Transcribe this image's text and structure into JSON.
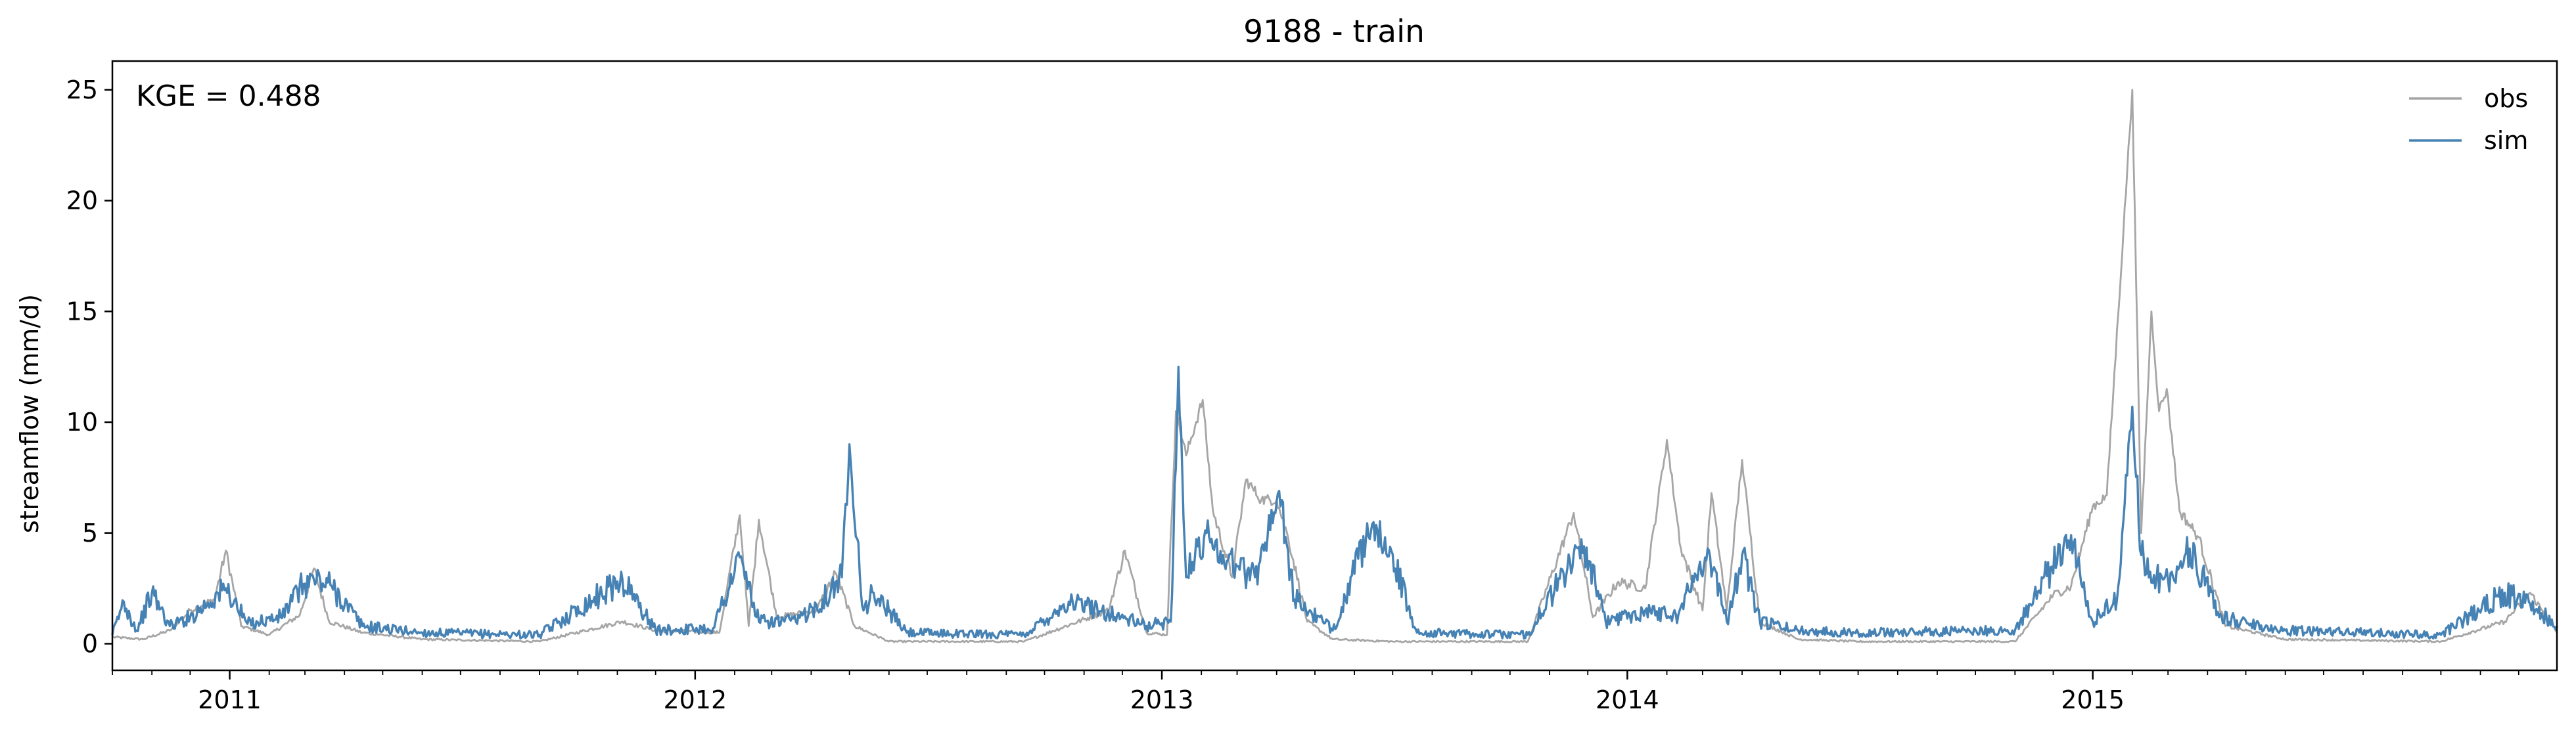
{
  "chart_data": {
    "type": "line",
    "title": "9188 - train",
    "xlabel": "",
    "ylabel": "streamflow (mm/d)",
    "annotation": "KGE = 0.488",
    "xlim": [
      "2010-10-01",
      "2015-12-31"
    ],
    "ylim": [
      -1.2,
      26.3
    ],
    "x_ticks": [
      "2011",
      "2012",
      "2013",
      "2014",
      "2015"
    ],
    "y_ticks": [
      "0",
      "5",
      "10",
      "15",
      "20",
      "25"
    ],
    "grid": false,
    "legend": "top-right",
    "series": [
      {
        "name": "obs",
        "color": "#a6a6a6",
        "points": [
          [
            "2010-10-01",
            0.3
          ],
          [
            "2010-10-25",
            0.2
          ],
          [
            "2010-11-15",
            0.6
          ],
          [
            "2010-12-01",
            1.5
          ],
          [
            "2010-12-20",
            2.0
          ],
          [
            "2010-12-29",
            4.2
          ],
          [
            "2011-01-10",
            0.8
          ],
          [
            "2011-02-01",
            0.4
          ],
          [
            "2011-02-25",
            1.3
          ],
          [
            "2011-03-08",
            3.4
          ],
          [
            "2011-03-20",
            1.0
          ],
          [
            "2011-04-15",
            0.5
          ],
          [
            "2011-06-01",
            0.2
          ],
          [
            "2011-09-01",
            0.1
          ],
          [
            "2011-11-05",
            1.0
          ],
          [
            "2011-12-01",
            0.6
          ],
          [
            "2012-01-20",
            0.5
          ],
          [
            "2012-02-05",
            5.8
          ],
          [
            "2012-02-12",
            0.8
          ],
          [
            "2012-02-20",
            5.6
          ],
          [
            "2012-03-05",
            1.2
          ],
          [
            "2012-04-05",
            1.5
          ],
          [
            "2012-04-20",
            3.2
          ],
          [
            "2012-05-05",
            0.8
          ],
          [
            "2012-06-01",
            0.1
          ],
          [
            "2012-09-15",
            0.1
          ],
          [
            "2012-11-20",
            1.5
          ],
          [
            "2012-12-03",
            4.2
          ],
          [
            "2012-12-20",
            0.5
          ],
          [
            "2013-01-05",
            0.4
          ],
          [
            "2013-01-12",
            10.5
          ],
          [
            "2013-01-20",
            8.5
          ],
          [
            "2013-02-02",
            11.0
          ],
          [
            "2013-02-10",
            6.0
          ],
          [
            "2013-02-25",
            3.0
          ],
          [
            "2013-03-08",
            7.4
          ],
          [
            "2013-03-20",
            6.5
          ],
          [
            "2013-04-01",
            6.5
          ],
          [
            "2013-04-10",
            4.8
          ],
          [
            "2013-04-25",
            1.0
          ],
          [
            "2013-05-15",
            0.2
          ],
          [
            "2013-07-01",
            0.1
          ],
          [
            "2013-10-15",
            0.1
          ],
          [
            "2013-11-20",
            5.9
          ],
          [
            "2013-12-05",
            1.2
          ],
          [
            "2013-12-25",
            2.8
          ],
          [
            "2014-01-15",
            2.5
          ],
          [
            "2014-02-01",
            9.2
          ],
          [
            "2014-02-12",
            4.3
          ],
          [
            "2014-03-01",
            1.5
          ],
          [
            "2014-03-08",
            6.8
          ],
          [
            "2014-03-20",
            1.5
          ],
          [
            "2014-04-01",
            8.3
          ],
          [
            "2014-04-15",
            1.0
          ],
          [
            "2014-05-15",
            0.2
          ],
          [
            "2014-07-01",
            0.1
          ],
          [
            "2014-11-01",
            0.1
          ],
          [
            "2014-12-01",
            2.2
          ],
          [
            "2014-12-15",
            2.6
          ],
          [
            "2015-01-01",
            6.2
          ],
          [
            "2015-01-12",
            6.7
          ],
          [
            "2015-02-01",
            25.0
          ],
          [
            "2015-02-08",
            5.0
          ],
          [
            "2015-02-16",
            15.0
          ],
          [
            "2015-02-22",
            10.5
          ],
          [
            "2015-02-28",
            11.5
          ],
          [
            "2015-03-10",
            6.0
          ],
          [
            "2015-03-25",
            4.8
          ],
          [
            "2015-04-15",
            0.8
          ],
          [
            "2015-06-01",
            0.2
          ],
          [
            "2015-10-01",
            0.1
          ],
          [
            "2015-11-20",
            1.0
          ],
          [
            "2015-12-10",
            2.3
          ],
          [
            "2015-12-31",
            0.5
          ]
        ]
      },
      {
        "name": "sim",
        "color": "#4682b4",
        "points": [
          [
            "2010-10-01",
            0.4
          ],
          [
            "2010-10-10",
            1.9
          ],
          [
            "2010-10-20",
            0.6
          ],
          [
            "2010-11-01",
            2.3
          ],
          [
            "2010-11-15",
            0.8
          ],
          [
            "2010-12-01",
            1.2
          ],
          [
            "2010-12-29",
            2.5
          ],
          [
            "2011-01-15",
            0.9
          ],
          [
            "2011-02-10",
            1.2
          ],
          [
            "2011-02-28",
            2.7
          ],
          [
            "2011-03-08",
            2.9
          ],
          [
            "2011-03-22",
            2.6
          ],
          [
            "2011-04-15",
            0.8
          ],
          [
            "2011-06-01",
            0.5
          ],
          [
            "2011-09-01",
            0.4
          ],
          [
            "2011-11-05",
            2.9
          ],
          [
            "2011-12-01",
            0.6
          ],
          [
            "2012-01-15",
            0.7
          ],
          [
            "2012-02-05",
            3.9
          ],
          [
            "2012-02-20",
            1.0
          ],
          [
            "2012-03-20",
            1.0
          ],
          [
            "2012-04-10",
            2.0
          ],
          [
            "2012-04-25",
            3.0
          ],
          [
            "2012-05-01",
            9.0
          ],
          [
            "2012-05-12",
            1.5
          ],
          [
            "2012-05-20",
            2.3
          ],
          [
            "2012-06-15",
            0.5
          ],
          [
            "2012-09-15",
            0.4
          ],
          [
            "2012-10-20",
            1.9
          ],
          [
            "2012-11-15",
            1.5
          ],
          [
            "2012-12-20",
            0.8
          ],
          [
            "2013-01-08",
            1.0
          ],
          [
            "2013-01-14",
            12.5
          ],
          [
            "2013-01-20",
            3.0
          ],
          [
            "2013-02-05",
            5.0
          ],
          [
            "2013-02-18",
            4.0
          ],
          [
            "2013-03-01",
            3.5
          ],
          [
            "2013-03-15",
            3.0
          ],
          [
            "2013-04-03",
            6.9
          ],
          [
            "2013-04-15",
            2.0
          ],
          [
            "2013-05-15",
            0.6
          ],
          [
            "2013-06-10",
            4.7
          ],
          [
            "2013-06-25",
            4.8
          ],
          [
            "2013-07-20",
            0.5
          ],
          [
            "2013-10-15",
            0.4
          ],
          [
            "2013-11-15",
            3.4
          ],
          [
            "2013-11-28",
            4.4
          ],
          [
            "2013-12-15",
            1.0
          ],
          [
            "2014-01-15",
            1.5
          ],
          [
            "2014-02-10",
            1.3
          ],
          [
            "2014-03-05",
            4.3
          ],
          [
            "2014-03-20",
            1.0
          ],
          [
            "2014-04-01",
            4.0
          ],
          [
            "2014-04-15",
            1.0
          ],
          [
            "2014-05-15",
            0.6
          ],
          [
            "2014-07-01",
            0.5
          ],
          [
            "2014-11-01",
            0.6
          ],
          [
            "2014-12-15",
            4.9
          ],
          [
            "2015-01-01",
            1.0
          ],
          [
            "2015-01-20",
            2.0
          ],
          [
            "2015-02-01",
            10.7
          ],
          [
            "2015-02-08",
            4.0
          ],
          [
            "2015-02-20",
            3.0
          ],
          [
            "2015-03-05",
            3.0
          ],
          [
            "2015-03-18",
            4.3
          ],
          [
            "2015-04-10",
            1.2
          ],
          [
            "2015-06-01",
            0.6
          ],
          [
            "2015-10-01",
            0.4
          ],
          [
            "2015-11-20",
            2.3
          ],
          [
            "2015-12-10",
            1.8
          ],
          [
            "2015-12-31",
            0.8
          ]
        ]
      }
    ]
  }
}
